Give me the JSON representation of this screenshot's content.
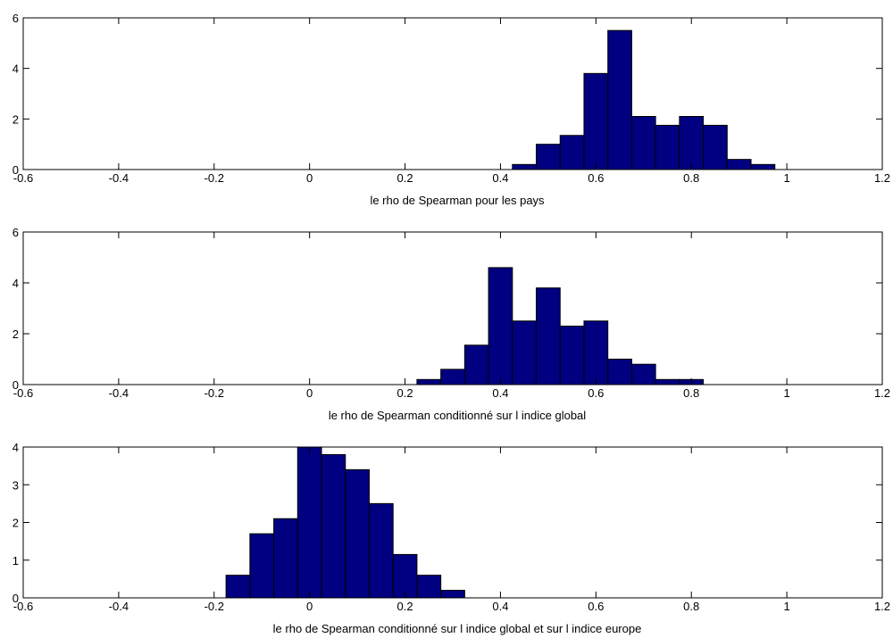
{
  "chart_data": [
    {
      "type": "bar",
      "style": "histogram",
      "xlabel": "le rho de Spearman pour les pays",
      "ylabel": "",
      "xlim": [
        -0.6,
        1.2
      ],
      "ylim": [
        0,
        6
      ],
      "xticks": [
        "-0.6",
        "-0.4",
        "-0.2",
        "0",
        "0.2",
        "0.4",
        "0.6",
        "0.8",
        "1",
        "1.2"
      ],
      "yticks": [
        "0",
        "2",
        "4",
        "6"
      ],
      "bar_color": "#000080",
      "bin_width": 0.05,
      "bin_centers": [
        0.45,
        0.5,
        0.55,
        0.6,
        0.65,
        0.7,
        0.75,
        0.8,
        0.85,
        0.9,
        0.95
      ],
      "values": [
        0.2,
        1.0,
        1.35,
        3.8,
        5.5,
        2.1,
        1.75,
        2.1,
        1.75,
        0.4,
        0.2
      ]
    },
    {
      "type": "bar",
      "style": "histogram",
      "xlabel": "le rho de Spearman conditionné sur l indice global",
      "ylabel": "",
      "xlim": [
        -0.6,
        1.2
      ],
      "ylim": [
        0,
        6
      ],
      "xticks": [
        "-0.6",
        "-0.4",
        "-0.2",
        "0",
        "0.2",
        "0.4",
        "0.6",
        "0.8",
        "1",
        "1.2"
      ],
      "yticks": [
        "0",
        "2",
        "4",
        "6"
      ],
      "bar_color": "#000080",
      "bin_width": 0.05,
      "bin_centers": [
        0.25,
        0.3,
        0.35,
        0.4,
        0.45,
        0.5,
        0.55,
        0.6,
        0.65,
        0.7,
        0.75,
        0.8
      ],
      "values": [
        0.2,
        0.6,
        1.55,
        4.6,
        2.5,
        3.8,
        2.3,
        2.5,
        1.0,
        0.8,
        0.2,
        0.2
      ]
    },
    {
      "type": "bar",
      "style": "histogram",
      "xlabel": "le rho de Spearman conditionné sur l indice global et sur l indice europe",
      "ylabel": "",
      "xlim": [
        -0.6,
        1.2
      ],
      "ylim": [
        0,
        4
      ],
      "xticks": [
        "-0.6",
        "-0.4",
        "-0.2",
        "0",
        "0.2",
        "0.4",
        "0.6",
        "0.8",
        "1",
        "1.2"
      ],
      "yticks": [
        "0",
        "1",
        "2",
        "3",
        "4"
      ],
      "bar_color": "#000080",
      "bin_width": 0.05,
      "bin_centers": [
        -0.15,
        -0.1,
        -0.05,
        0.0,
        0.05,
        0.1,
        0.15,
        0.2,
        0.25,
        0.3
      ],
      "values": [
        0.6,
        1.7,
        2.1,
        4.0,
        3.8,
        3.4,
        2.5,
        1.15,
        0.6,
        0.2
      ]
    }
  ]
}
